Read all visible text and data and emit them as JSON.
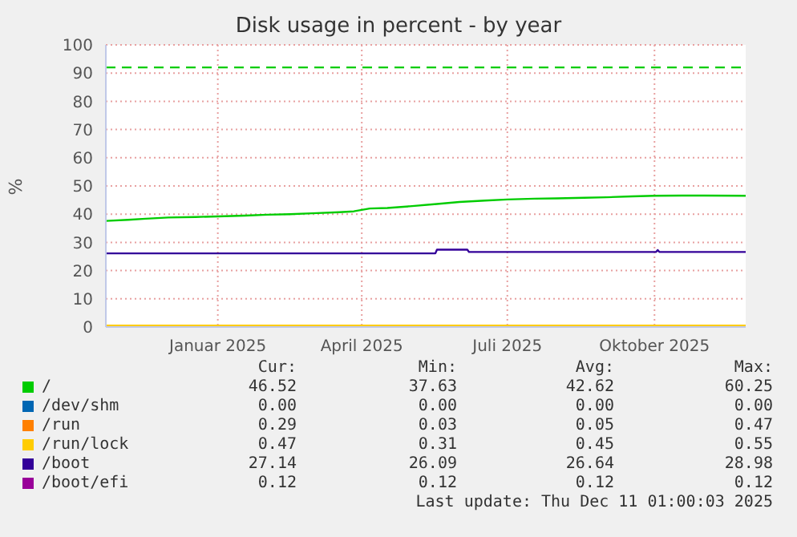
{
  "chart_data": {
    "type": "line",
    "title": "Disk usage in percent - by year",
    "ylabel": "%",
    "x": [
      "2024-11-06",
      "2024-11-20",
      "2024-12-01",
      "2024-12-15",
      "2025-01-01",
      "2025-01-15",
      "2025-02-01",
      "2025-02-15",
      "2025-03-01",
      "2025-03-15",
      "2025-04-01",
      "2025-04-10",
      "2025-04-20",
      "2025-05-01",
      "2025-05-15",
      "2025-06-01",
      "2025-06-15",
      "2025-07-01",
      "2025-07-15",
      "2025-08-01",
      "2025-08-15",
      "2025-09-01",
      "2025-09-15",
      "2025-10-01",
      "2025-10-15",
      "2025-11-01",
      "2025-11-15",
      "2025-12-11"
    ],
    "series": [
      {
        "name": "/",
        "color": "#00cc00",
        "values": [
          37.6,
          38.0,
          38.4,
          38.8,
          39.0,
          39.2,
          39.5,
          39.8,
          40.0,
          40.3,
          40.7,
          41.0,
          42.0,
          42.2,
          42.8,
          43.6,
          44.3,
          44.8,
          45.2,
          45.5,
          45.6,
          45.8,
          46.0,
          46.3,
          46.5,
          46.6,
          46.6,
          46.5
        ]
      },
      {
        "name": "/dev/shm",
        "color": "#0066b3",
        "values": [
          null,
          null,
          null,
          null,
          null,
          null,
          null,
          null,
          null,
          null,
          null,
          null,
          null,
          null,
          null,
          null,
          null,
          null,
          null,
          null,
          null,
          null,
          null,
          null,
          null,
          null,
          null,
          null
        ]
      },
      {
        "name": "/run",
        "color": "#ff8000",
        "values": [
          null,
          null,
          null,
          null,
          null,
          null,
          null,
          null,
          null,
          null,
          null,
          null,
          null,
          null,
          null,
          null,
          null,
          null,
          null,
          null,
          null,
          null,
          null,
          null,
          null,
          null,
          null,
          null
        ]
      },
      {
        "name": "/run/lock",
        "color": "#ffcc00",
        "x": [
          "2024-11-06",
          "2025-12-11"
        ],
        "values": [
          0.5,
          0.5
        ]
      },
      {
        "name": "/boot",
        "color": "#330099",
        "x": [
          "2024-11-06",
          "2025-05-31",
          "2025-06-01",
          "2025-06-20",
          "2025-06-21",
          "2025-10-16",
          "2025-10-17",
          "2025-10-18",
          "2025-12-11"
        ],
        "values": [
          26.1,
          26.1,
          27.4,
          27.4,
          26.6,
          26.6,
          27.3,
          26.6,
          26.6
        ]
      },
      {
        "name": "/boot/efi",
        "color": "#990099",
        "values": [
          null,
          null,
          null,
          null,
          null,
          null,
          null,
          null,
          null,
          null,
          null,
          null,
          null,
          null,
          null,
          null,
          null,
          null,
          null,
          null,
          null,
          null,
          null,
          null,
          null,
          null,
          null,
          null
        ]
      }
    ],
    "xlim": [
      "2024-11-06",
      "2025-12-11"
    ],
    "xticks": [
      {
        "value": "2025-01-15",
        "label": "Januar 2025"
      },
      {
        "value": "2025-04-15",
        "label": "April 2025"
      },
      {
        "value": "2025-07-15",
        "label": "Juli 2025"
      },
      {
        "value": "2025-10-15",
        "label": "Oktober 2025"
      }
    ],
    "ylim": [
      0,
      100
    ],
    "yticks": [
      0,
      10,
      20,
      30,
      40,
      50,
      60,
      70,
      80,
      90,
      100
    ],
    "grid": true,
    "legend": "bottom",
    "ref_lines": [
      {
        "axis": "y",
        "value": 92,
        "color": "#00cc00",
        "line_style": "dashed"
      }
    ],
    "annotations": [
      "Cur:",
      "Min:",
      "Avg:",
      "Max:",
      "46.52",
      "37.63",
      "42.62",
      "60.25",
      "0.00",
      "0.00",
      "0.00",
      "0.00",
      "0.29",
      "0.03",
      "0.05",
      "0.47",
      "0.47",
      "0.31",
      "0.45",
      "0.55",
      "27.14",
      "26.09",
      "26.64",
      "28.98",
      "0.12",
      "0.12",
      "0.12",
      "0.12",
      "Last update: Thu Dec 11 01:00:03 2025"
    ]
  }
}
